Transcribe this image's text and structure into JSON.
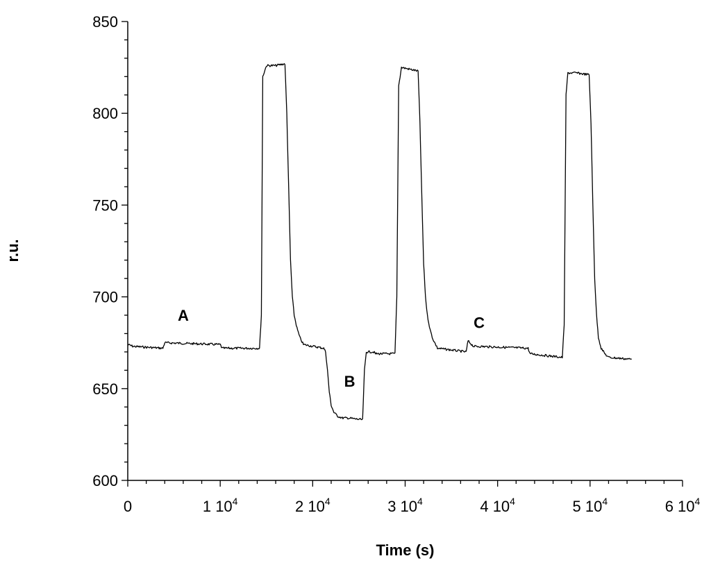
{
  "chart_data": {
    "type": "line",
    "title": "",
    "xlabel": "Time (s)",
    "ylabel": "r.u.",
    "xlim": [
      0,
      60000
    ],
    "ylim": [
      600,
      850
    ],
    "grid": false,
    "legend": "none",
    "line_color": "#000000",
    "y_ticks": [
      {
        "value": 600,
        "label": "600"
      },
      {
        "value": 650,
        "label": "650"
      },
      {
        "value": 700,
        "label": "700"
      },
      {
        "value": 750,
        "label": "750"
      },
      {
        "value": 800,
        "label": "800"
      },
      {
        "value": 850,
        "label": "850"
      }
    ],
    "x_ticks": [
      {
        "value": 0,
        "label": "0",
        "exponent": ""
      },
      {
        "value": 10000,
        "label": "1 10",
        "exponent": "4"
      },
      {
        "value": 20000,
        "label": "2 10",
        "exponent": "4"
      },
      {
        "value": 30000,
        "label": "3 10",
        "exponent": "4"
      },
      {
        "value": 40000,
        "label": "4 10",
        "exponent": "4"
      },
      {
        "value": 50000,
        "label": "5 10",
        "exponent": "4"
      },
      {
        "value": 60000,
        "label": "6 10",
        "exponent": "4"
      }
    ],
    "annotations": [
      {
        "text": "A",
        "x": 6000,
        "y": 687
      },
      {
        "text": "B",
        "x": 24000,
        "y": 651
      },
      {
        "text": "C",
        "x": 38000,
        "y": 683
      }
    ],
    "series": [
      {
        "x": [
          0,
          600,
          3800,
          4000,
          10000,
          10200,
          14250,
          14450,
          14600,
          15000,
          16000,
          17000,
          17200,
          17400,
          17600,
          17800,
          18000,
          18300,
          18600,
          19000,
          21200,
          21400,
          21600,
          21800,
          22000,
          22300,
          22700,
          23200,
          23800,
          25400,
          25600,
          25800,
          26600,
          26800,
          28900,
          29100,
          29300,
          29600,
          30500,
          31400,
          31600,
          31800,
          32000,
          32200,
          32400,
          32700,
          33000,
          33500,
          36600,
          36800,
          37400,
          38000,
          43300,
          43500,
          47000,
          47200,
          47400,
          47600,
          48500,
          49900,
          50100,
          50300,
          50500,
          50700,
          50900,
          51200,
          51600,
          52000,
          54500
        ],
        "y": [
          674,
          673,
          672,
          675,
          674,
          672,
          672,
          690,
          820,
          826,
          826,
          827,
          800,
          760,
          720,
          700,
          690,
          683,
          678,
          674,
          672,
          670,
          660,
          648,
          641,
          637,
          635,
          634,
          634,
          633,
          660,
          670,
          670,
          669,
          669,
          700,
          815,
          825,
          824,
          823,
          795,
          755,
          718,
          700,
          690,
          682,
          677,
          672,
          670,
          676,
          673,
          673,
          672,
          669,
          667,
          685,
          810,
          822,
          822,
          821,
          795,
          750,
          710,
          690,
          678,
          672,
          669,
          667,
          666
        ]
      }
    ]
  }
}
